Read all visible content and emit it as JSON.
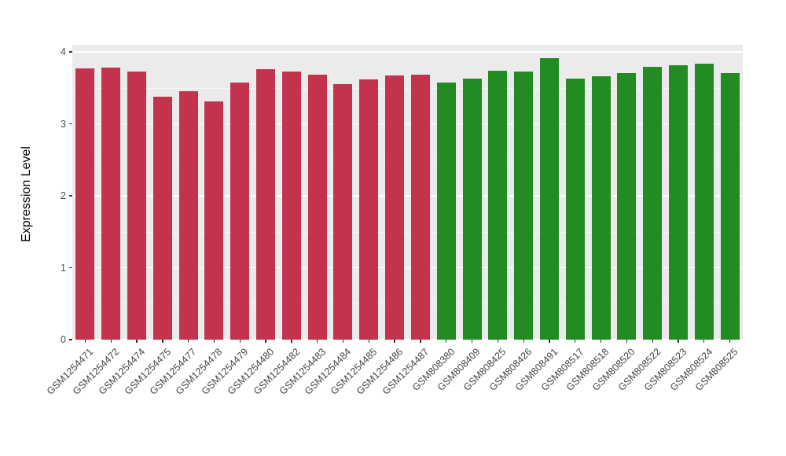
{
  "chart_data": {
    "type": "bar",
    "title": "",
    "xlabel": "",
    "ylabel": "Expression Level",
    "ylim": [
      0,
      4
    ],
    "yticks": [
      0,
      1,
      2,
      3,
      4
    ],
    "grid": "on",
    "legend": "none",
    "panel_background": "#EBEBEB",
    "gridline_color": "#FFFFFF",
    "group_colors": {
      "groupA": "#C3334D",
      "groupB": "#228B22"
    },
    "bars": [
      {
        "label": "GSM1254471",
        "value": 3.77,
        "group": "groupA"
      },
      {
        "label": "GSM1254472",
        "value": 3.78,
        "group": "groupA"
      },
      {
        "label": "GSM1254474",
        "value": 3.73,
        "group": "groupA"
      },
      {
        "label": "GSM1254475",
        "value": 3.38,
        "group": "groupA"
      },
      {
        "label": "GSM1254477",
        "value": 3.45,
        "group": "groupA"
      },
      {
        "label": "GSM1254478",
        "value": 3.31,
        "group": "groupA"
      },
      {
        "label": "GSM1254479",
        "value": 3.57,
        "group": "groupA"
      },
      {
        "label": "GSM1254480",
        "value": 3.76,
        "group": "groupA"
      },
      {
        "label": "GSM1254482",
        "value": 3.73,
        "group": "groupA"
      },
      {
        "label": "GSM1254483",
        "value": 3.68,
        "group": "groupA"
      },
      {
        "label": "GSM1254484",
        "value": 3.55,
        "group": "groupA"
      },
      {
        "label": "GSM1254485",
        "value": 3.62,
        "group": "groupA"
      },
      {
        "label": "GSM1254486",
        "value": 3.67,
        "group": "groupA"
      },
      {
        "label": "GSM1254487",
        "value": 3.68,
        "group": "groupA"
      },
      {
        "label": "GSM808380",
        "value": 3.57,
        "group": "groupB"
      },
      {
        "label": "GSM808409",
        "value": 3.63,
        "group": "groupB"
      },
      {
        "label": "GSM808425",
        "value": 3.74,
        "group": "groupB"
      },
      {
        "label": "GSM808426",
        "value": 3.73,
        "group": "groupB"
      },
      {
        "label": "GSM808491",
        "value": 3.91,
        "group": "groupB"
      },
      {
        "label": "GSM808517",
        "value": 3.63,
        "group": "groupB"
      },
      {
        "label": "GSM808518",
        "value": 3.66,
        "group": "groupB"
      },
      {
        "label": "GSM808520",
        "value": 3.71,
        "group": "groupB"
      },
      {
        "label": "GSM808522",
        "value": 3.79,
        "group": "groupB"
      },
      {
        "label": "GSM808523",
        "value": 3.81,
        "group": "groupB"
      },
      {
        "label": "GSM808524",
        "value": 3.84,
        "group": "groupB"
      },
      {
        "label": "GSM808525",
        "value": 3.7,
        "group": "groupB"
      }
    ]
  }
}
